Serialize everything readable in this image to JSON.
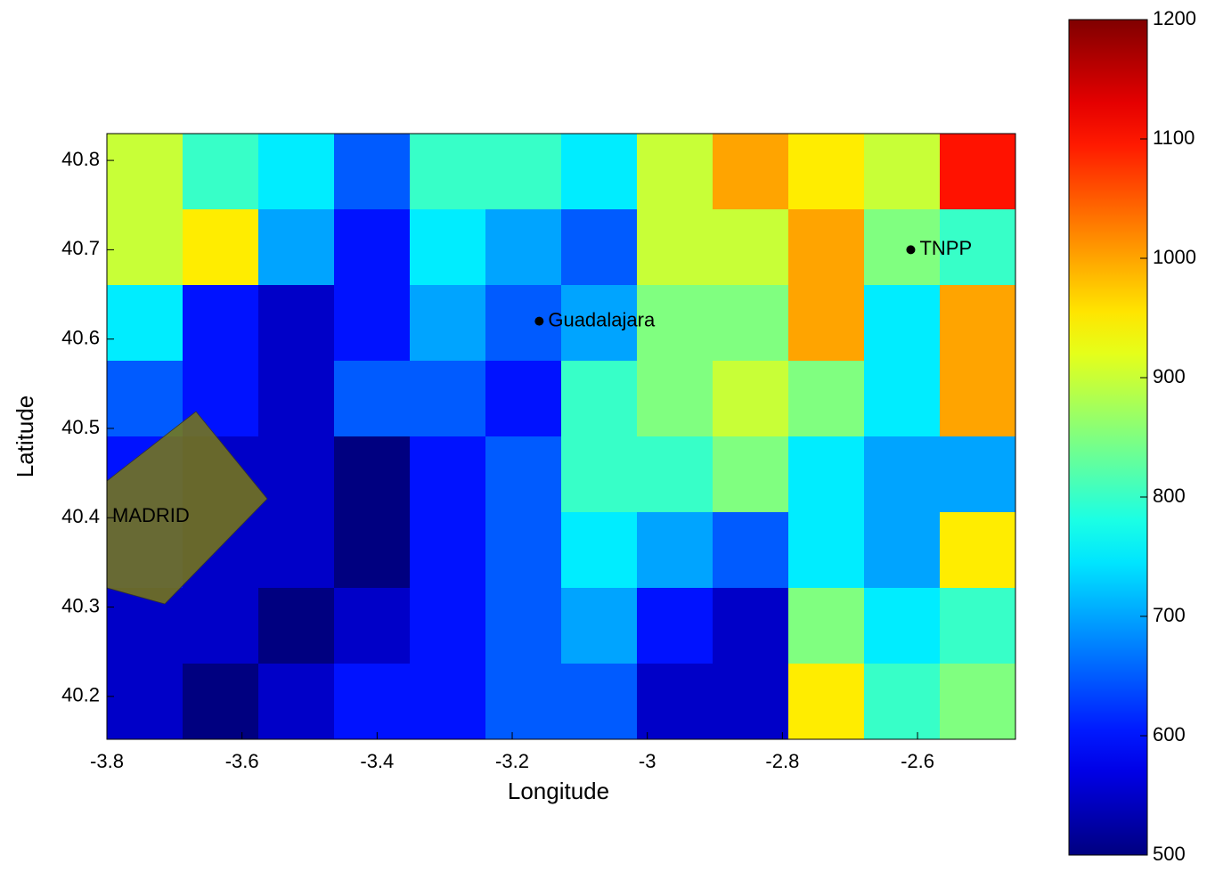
{
  "chart_data": {
    "type": "contourf",
    "xlabel": "Longitude",
    "ylabel": "Latitude",
    "xlim": [
      -3.8,
      -2.455
    ],
    "ylim": [
      40.152,
      40.83
    ],
    "xticks": [
      -3.8,
      -3.6,
      -3.4,
      -3.2,
      -3,
      -2.8,
      -2.6
    ],
    "yticks": [
      40.2,
      40.3,
      40.4,
      40.5,
      40.6,
      40.7,
      40.8
    ],
    "z": [
      [
        900,
        800,
        750,
        650,
        800,
        800,
        750,
        900,
        1000,
        950,
        900,
        1100
      ],
      [
        900,
        950,
        700,
        600,
        750,
        700,
        650,
        900,
        900,
        1000,
        850,
        800
      ],
      [
        750,
        600,
        550,
        600,
        700,
        650,
        700,
        850,
        850,
        1000,
        750,
        1000
      ],
      [
        650,
        600,
        550,
        650,
        650,
        600,
        800,
        850,
        900,
        850,
        750,
        1000
      ],
      [
        600,
        550,
        550,
        500,
        600,
        650,
        800,
        800,
        850,
        750,
        700,
        700
      ],
      [
        600,
        550,
        550,
        500,
        600,
        650,
        750,
        700,
        650,
        750,
        700,
        950
      ],
      [
        550,
        550,
        500,
        550,
        600,
        650,
        700,
        600,
        550,
        850,
        750,
        800
      ],
      [
        550,
        500,
        550,
        600,
        600,
        650,
        650,
        550,
        550,
        950,
        800,
        850
      ]
    ],
    "clim": [
      500,
      1200
    ],
    "cticks": [
      500,
      600,
      700,
      800,
      900,
      1000,
      1100,
      1200
    ],
    "colormap": "jet",
    "points": [
      {
        "label": "Guadalajara",
        "x": -3.16,
        "y": 40.62
      },
      {
        "label": "TNPP",
        "x": -2.61,
        "y": 40.7
      }
    ],
    "region_label": "MADRID"
  }
}
